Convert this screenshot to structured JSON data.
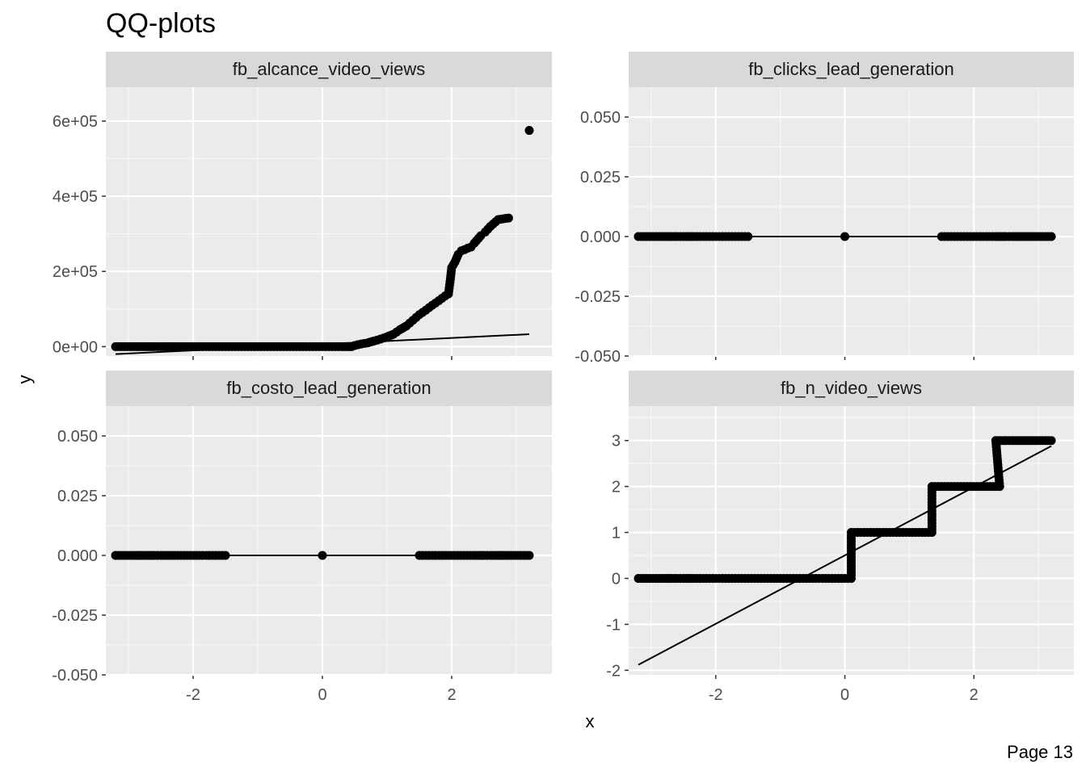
{
  "title": "QQ-plots",
  "page_label": "Page 13",
  "x_axis_label": "x",
  "y_axis_label": "y",
  "chart_data": [
    {
      "type": "scatter",
      "subtype": "qq-plot",
      "panel_title": "fb_alcance_video_views",
      "xlim": [
        -3.35,
        3.55
      ],
      "ylim": [
        -25000,
        690000
      ],
      "x_ticks": [
        -2,
        0,
        2
      ],
      "x_tick_labels": [
        "-2",
        "0",
        "2"
      ],
      "y_ticks": [
        0,
        200000,
        400000,
        600000
      ],
      "y_tick_labels": [
        "0e+00",
        "2e+05",
        "4e+05",
        "6e+05"
      ],
      "x_tick_labels_shown": false,
      "points": [
        [
          -3.2,
          0
        ],
        [
          -2.88,
          0
        ],
        [
          -2.72,
          0
        ],
        [
          -2.6,
          0
        ],
        [
          -2.5,
          0
        ],
        [
          -2.42,
          0
        ],
        [
          -2.34,
          0
        ],
        [
          -2.0,
          0
        ],
        [
          -1.5,
          0
        ],
        [
          -1.0,
          0
        ],
        [
          -0.5,
          0
        ],
        [
          0.0,
          0
        ],
        [
          0.3,
          0
        ],
        [
          0.45,
          0
        ],
        [
          0.5,
          3000
        ],
        [
          0.6,
          7000
        ],
        [
          0.7,
          10000
        ],
        [
          0.8,
          15000
        ],
        [
          0.9,
          20000
        ],
        [
          1.0,
          26000
        ],
        [
          1.1,
          33000
        ],
        [
          1.2,
          45000
        ],
        [
          1.3,
          55000
        ],
        [
          1.4,
          70000
        ],
        [
          1.5,
          85000
        ],
        [
          1.6,
          97000
        ],
        [
          1.7,
          110000
        ],
        [
          1.8,
          122000
        ],
        [
          1.9,
          135000
        ],
        [
          1.95,
          140000
        ],
        [
          1.98,
          180000
        ],
        [
          2.0,
          210000
        ],
        [
          2.05,
          225000
        ],
        [
          2.1,
          245000
        ],
        [
          2.15,
          255000
        ],
        [
          2.2,
          258000
        ],
        [
          2.25,
          262000
        ],
        [
          2.3,
          265000
        ],
        [
          2.35,
          275000
        ],
        [
          2.45,
          295000
        ],
        [
          2.52,
          305000
        ],
        [
          2.6,
          320000
        ],
        [
          2.72,
          338000
        ],
        [
          2.88,
          342000
        ],
        [
          3.2,
          575000
        ]
      ],
      "reference_line": {
        "x": [
          -3.2,
          3.2
        ],
        "y": [
          -20000,
          33000
        ]
      }
    },
    {
      "type": "scatter",
      "subtype": "qq-plot",
      "panel_title": "fb_clicks_lead_generation",
      "xlim": [
        -3.35,
        3.55
      ],
      "ylim": [
        -0.05,
        0.0625
      ],
      "x_ticks": [
        -2,
        0,
        2
      ],
      "x_tick_labels": [
        "-2",
        "0",
        "2"
      ],
      "y_ticks": [
        -0.05,
        -0.025,
        0,
        0.025,
        0.05
      ],
      "y_tick_labels": [
        "-0.050",
        "-0.025",
        "0.000",
        "0.025",
        "0.050"
      ],
      "x_tick_labels_shown": false,
      "points": [
        [
          -3.2,
          0
        ],
        [
          -2.88,
          0
        ],
        [
          -2.72,
          0
        ],
        [
          -2.6,
          0
        ],
        [
          -2.5,
          0
        ],
        [
          -2.42,
          0
        ],
        [
          -2.34,
          0
        ],
        [
          -1.5,
          0
        ],
        [
          0.0,
          0
        ],
        [
          1.5,
          0
        ],
        [
          2.34,
          0
        ],
        [
          2.42,
          0
        ],
        [
          2.5,
          0
        ],
        [
          2.6,
          0
        ],
        [
          2.72,
          0
        ],
        [
          2.88,
          0
        ],
        [
          3.2,
          0
        ]
      ],
      "reference_line": {
        "x": [
          -3.2,
          3.2
        ],
        "y": [
          0,
          0
        ]
      }
    },
    {
      "type": "scatter",
      "subtype": "qq-plot",
      "panel_title": "fb_costo_lead_generation",
      "xlim": [
        -3.35,
        3.55
      ],
      "ylim": [
        -0.05,
        0.0625
      ],
      "x_ticks": [
        -2,
        0,
        2
      ],
      "x_tick_labels": [
        "-2",
        "0",
        "2"
      ],
      "y_ticks": [
        -0.05,
        -0.025,
        0,
        0.025,
        0.05
      ],
      "y_tick_labels": [
        "-0.050",
        "-0.025",
        "0.000",
        "0.025",
        "0.050"
      ],
      "x_tick_labels_shown": true,
      "points": [
        [
          -3.2,
          0
        ],
        [
          -2.88,
          0
        ],
        [
          -2.72,
          0
        ],
        [
          -2.6,
          0
        ],
        [
          -2.5,
          0
        ],
        [
          -2.42,
          0
        ],
        [
          -2.34,
          0
        ],
        [
          -1.5,
          0
        ],
        [
          0.0,
          0
        ],
        [
          1.5,
          0
        ],
        [
          2.34,
          0
        ],
        [
          2.42,
          0
        ],
        [
          2.5,
          0
        ],
        [
          2.6,
          0
        ],
        [
          2.72,
          0
        ],
        [
          2.88,
          0
        ],
        [
          3.2,
          0
        ]
      ],
      "reference_line": {
        "x": [
          -3.2,
          3.2
        ],
        "y": [
          0,
          0
        ]
      }
    },
    {
      "type": "scatter",
      "subtype": "qq-plot",
      "panel_title": "fb_n_video_views",
      "xlim": [
        -3.35,
        3.55
      ],
      "ylim": [
        -2.1,
        3.75
      ],
      "x_ticks": [
        -2,
        0,
        2
      ],
      "x_tick_labels": [
        "-2",
        "0",
        "2"
      ],
      "y_ticks": [
        -2,
        -1,
        0,
        1,
        2,
        3
      ],
      "y_tick_labels": [
        "-2",
        "-1",
        "0",
        "1",
        "2",
        "3"
      ],
      "x_tick_labels_shown": true,
      "points": [
        [
          -3.2,
          0
        ],
        [
          -2.88,
          0
        ],
        [
          -2.72,
          0
        ],
        [
          -2.6,
          0
        ],
        [
          -2.5,
          0
        ],
        [
          -2.42,
          0
        ],
        [
          -2.34,
          0
        ],
        [
          -1.5,
          0
        ],
        [
          -0.5,
          0
        ],
        [
          0.1,
          0
        ],
        [
          0.1,
          1
        ],
        [
          0.7,
          1
        ],
        [
          1.35,
          1
        ],
        [
          1.35,
          2
        ],
        [
          1.9,
          2
        ],
        [
          2.4,
          2
        ],
        [
          2.34,
          3
        ],
        [
          2.42,
          3
        ],
        [
          2.5,
          3
        ],
        [
          2.6,
          3
        ],
        [
          2.72,
          3
        ],
        [
          2.88,
          3
        ],
        [
          3.2,
          3
        ]
      ],
      "reference_line": {
        "x": [
          -3.2,
          3.2
        ],
        "y": [
          -1.88,
          2.88
        ]
      }
    }
  ]
}
